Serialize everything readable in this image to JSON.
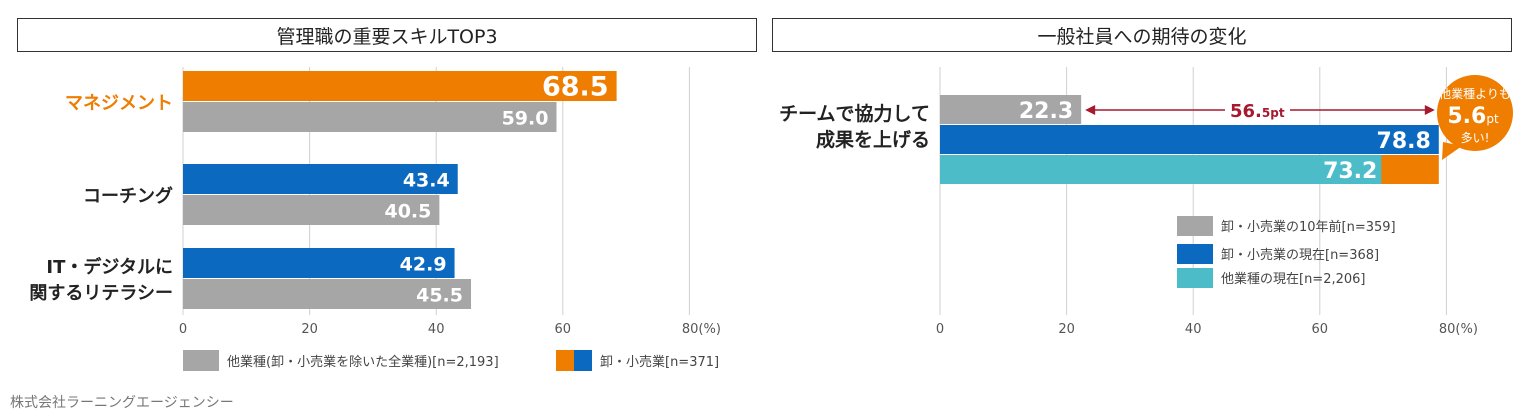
{
  "left": {
    "title": "管理職の重要スキルTOP3",
    "chart_data": {
      "type": "bar",
      "orientation": "horizontal",
      "categories": [
        {
          "lines": [
            "マネジメント"
          ],
          "highlight": true
        },
        {
          "lines": [
            "コーチング"
          ],
          "highlight": false
        },
        {
          "lines": [
            "IT・デジタルに",
            "関するリテラシー"
          ],
          "highlight": false
        }
      ],
      "series": [
        {
          "name": "卸・小売業[n=371]",
          "values": [
            68.5,
            43.4,
            42.9
          ],
          "colors": [
            "#ee7d00",
            "#0b6abf",
            "#0b6abf"
          ]
        },
        {
          "name": "他業種(卸・小売業を除いた全業種)[n=2,193]",
          "values": [
            59.0,
            40.5,
            45.5
          ],
          "colors": [
            "#a6a6a6",
            "#a6a6a6",
            "#a6a6a6"
          ]
        }
      ],
      "xlim": [
        0,
        80
      ],
      "xticks": [
        "0",
        "20",
        "40",
        "60",
        "80(%)"
      ],
      "grid": true,
      "legend_position": "bottom"
    }
  },
  "right": {
    "title": "一般社員への期待の変化",
    "chart_data": {
      "type": "bar",
      "orientation": "horizontal",
      "categories": [
        {
          "lines": [
            "チームで協力して",
            "成果を上げる"
          ]
        }
      ],
      "series": [
        {
          "name": "卸・小売業の10年前[n=359]",
          "values": [
            22.3
          ],
          "color": "#a6a6a6"
        },
        {
          "name": "卸・小売業の現在[n=368]",
          "values": [
            78.8
          ],
          "color": "#0b6abf"
        },
        {
          "name": "他業種の現在[n=2,206]",
          "values": [
            73.2
          ],
          "color": "#4bbcc8"
        }
      ],
      "xlim": [
        0,
        80
      ],
      "xticks": [
        "0",
        "20",
        "40",
        "60",
        "80(%)"
      ],
      "grid": true,
      "legend_position": "bottom-right",
      "difference_annotation": {
        "value": "56.",
        "value_small": "5pt",
        "color": "#a6192e"
      },
      "callout": {
        "line1": "他業種よりも",
        "value": "5.6",
        "unit": "pt",
        "line3": "多い!",
        "color": "#ee7d00"
      }
    }
  },
  "footer": "株式会社ラーニングエージェンシー"
}
